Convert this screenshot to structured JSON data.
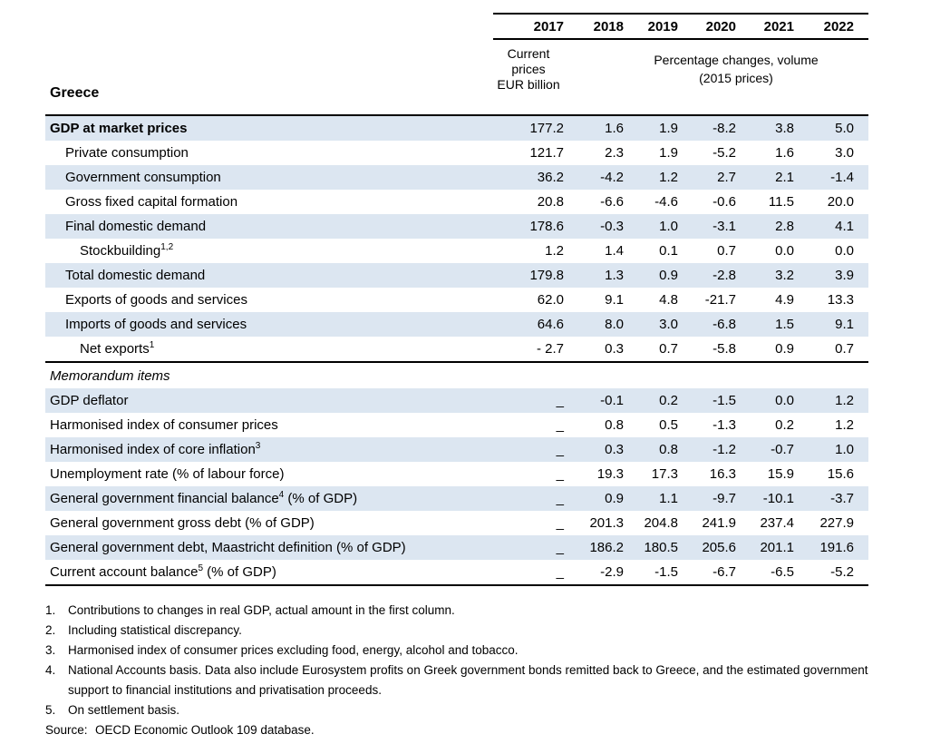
{
  "table": {
    "title": "Greece",
    "years": [
      "2017",
      "2018",
      "2019",
      "2020",
      "2021",
      "2022"
    ],
    "subheader": {
      "current_prices": "Current\nprices\nEUR billion",
      "percentage_changes": "Percentage changes, volume\n(2015 prices)"
    },
    "rows": [
      {
        "label": "GDP at market prices",
        "bold": true,
        "indent": 0,
        "shaded": true,
        "values": [
          "177.2",
          "1.6",
          "1.9",
          "-8.2",
          "3.8",
          "5.0"
        ]
      },
      {
        "label": "Private consumption",
        "indent": 1,
        "shaded": false,
        "values": [
          "121.7",
          "2.3",
          "1.9",
          "-5.2",
          "1.6",
          "3.0"
        ]
      },
      {
        "label": "Government consumption",
        "indent": 1,
        "shaded": true,
        "values": [
          "36.2",
          "-4.2",
          "1.2",
          "2.7",
          "2.1",
          "-1.4"
        ]
      },
      {
        "label": "Gross fixed capital formation",
        "indent": 1,
        "shaded": false,
        "values": [
          "20.8",
          "-6.6",
          "-4.6",
          "-0.6",
          "11.5",
          "20.0"
        ]
      },
      {
        "label": "Final domestic demand",
        "indent": 1,
        "shaded": true,
        "values": [
          "178.6",
          "-0.3",
          "1.0",
          "-3.1",
          "2.8",
          "4.1"
        ]
      },
      {
        "label": "Stockbuilding",
        "sup": "1,2",
        "indent": 2,
        "shaded": false,
        "values": [
          "1.2",
          "1.4",
          "0.1",
          "0.7",
          "0.0",
          "0.0"
        ]
      },
      {
        "label": "Total domestic demand",
        "indent": 1,
        "shaded": true,
        "values": [
          "179.8",
          "1.3",
          "0.9",
          "-2.8",
          "3.2",
          "3.9"
        ]
      },
      {
        "label": "Exports of goods and services",
        "indent": 1,
        "shaded": false,
        "values": [
          "62.0",
          "9.1",
          "4.8",
          "-21.7",
          "4.9",
          "13.3"
        ]
      },
      {
        "label": "Imports of goods and services",
        "indent": 1,
        "shaded": true,
        "values": [
          "64.6",
          "8.0",
          "3.0",
          "-6.8",
          "1.5",
          "9.1"
        ]
      },
      {
        "label": "Net exports",
        "sup": "1",
        "indent": 2,
        "shaded": false,
        "values": [
          "- 2.7",
          "0.3",
          "0.7",
          "-5.8",
          "0.9",
          "0.7"
        ]
      }
    ],
    "memorandum": {
      "title": "Memorandum items",
      "rows": [
        {
          "label": "GDP deflator",
          "indent": 0,
          "shaded": true,
          "values": [
            "_",
            "-0.1",
            "0.2",
            "-1.5",
            "0.0",
            "1.2"
          ]
        },
        {
          "label": "Harmonised index of consumer prices",
          "indent": 0,
          "shaded": false,
          "values": [
            "_",
            "0.8",
            "0.5",
            "-1.3",
            "0.2",
            "1.2"
          ]
        },
        {
          "label": "Harmonised index of core inflation",
          "sup": "3",
          "indent": 0,
          "shaded": true,
          "values": [
            "_",
            "0.3",
            "0.8",
            "-1.2",
            "-0.7",
            "1.0"
          ]
        },
        {
          "label": "Unemployment rate (% of labour force)",
          "indent": 0,
          "shaded": false,
          "values": [
            "_",
            "19.3",
            "17.3",
            "16.3",
            "15.9",
            "15.6"
          ]
        },
        {
          "label": "General government financial balance",
          "sup": "4",
          "suffix": " (% of GDP)",
          "indent": 0,
          "shaded": true,
          "values": [
            "_",
            "0.9",
            "1.1",
            "-9.7",
            "-10.1",
            "-3.7"
          ]
        },
        {
          "label": "General government gross debt (% of GDP)",
          "indent": 0,
          "shaded": false,
          "values": [
            "_",
            "201.3",
            "204.8",
            "241.9",
            "237.4",
            "227.9"
          ]
        },
        {
          "label": "General government debt, Maastricht definition (% of GDP)",
          "indent": 0,
          "shaded": true,
          "values": [
            "_",
            "186.2",
            "180.5",
            "205.6",
            "201.1",
            "191.6"
          ]
        },
        {
          "label": "Current account balance",
          "sup": "5",
          "suffix": " (% of GDP)",
          "indent": 0,
          "shaded": false,
          "values": [
            "_",
            "-2.9",
            "-1.5",
            "-6.7",
            "-6.5",
            "-5.2"
          ]
        }
      ]
    }
  },
  "footnotes": [
    {
      "num": "1",
      "text": "Contributions to changes in real GDP, actual amount in the first column."
    },
    {
      "num": "2",
      "text": "Including statistical discrepancy."
    },
    {
      "num": "3",
      "text": "Harmonised index of consumer prices excluding food, energy, alcohol and tobacco."
    },
    {
      "num": "4",
      "text": "National Accounts basis. Data also include Eurosystem profits on Greek government bonds remitted back to Greece, and the estimated government support to financial institutions and privatisation proceeds."
    },
    {
      "num": "5",
      "text": "On settlement basis."
    }
  ],
  "source": {
    "label": "Source:",
    "text": "OECD Economic Outlook 109 database."
  },
  "colors": {
    "row_shade": "#dce6f1",
    "rule": "#000000"
  }
}
